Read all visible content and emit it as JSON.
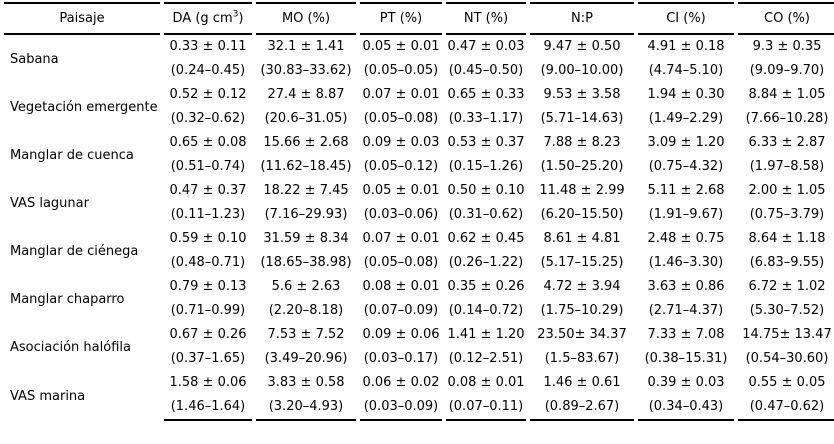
{
  "colors": {
    "text": "#000000",
    "background": "#ffffff",
    "rule": "#000000"
  },
  "table": {
    "columns": [
      {
        "id": "paisaje",
        "label": "Paisaje"
      },
      {
        "id": "da",
        "label_pre": "DA (g cm",
        "label_sup": "3",
        "label_post": ")"
      },
      {
        "id": "mo",
        "label": "MO (%)"
      },
      {
        "id": "pt",
        "label": "PT (%)"
      },
      {
        "id": "nt",
        "label": "NT (%)"
      },
      {
        "id": "np",
        "label": "N:P"
      },
      {
        "id": "ci",
        "label": "CI (%)"
      },
      {
        "id": "co",
        "label": "CO (%)"
      }
    ],
    "rows": [
      {
        "paisaje": "Sabana",
        "mean": [
          "0.33 ± 0.11",
          "32.1 ± 1.41",
          "0.05 ± 0.01",
          "0.47 ± 0.03",
          "9.47 ± 0.50",
          "4.91 ± 0.18",
          "9.3 ± 0.35"
        ],
        "range": [
          "(0.24–0.45)",
          "(30.83–33.62)",
          "(0.05–0.05)",
          "(0.45–0.50)",
          "(9.00–10.00)",
          "(4.74–5.10)",
          "(9.09–9.70)"
        ]
      },
      {
        "paisaje": "Vegetación emergente",
        "mean": [
          "0.52 ± 0.12",
          "27.4 ± 8.87",
          "0.07 ± 0.01",
          "0.65 ± 0.33",
          "9.53 ± 3.58",
          "1.94 ± 0.30",
          "8.84 ± 1.05"
        ],
        "range": [
          "(0.32–0.62)",
          "(20.6–31.05)",
          "(0.05–0.08)",
          "(0.33–1.17)",
          "(5.71–14.63)",
          "(1.49–2.29)",
          "(7.66–10.28)"
        ]
      },
      {
        "paisaje": "Manglar de cuenca",
        "mean": [
          "0.65 ± 0.08",
          "15.66 ± 2.68",
          "0.09 ± 0.03",
          "0.53 ± 0.37",
          "7.88 ± 8.23",
          "3.09 ± 1.20",
          "6.33 ± 2.87"
        ],
        "range": [
          "(0.51–0.74)",
          "(11.62–18.45)",
          "(0.05–0.12)",
          "(0.15–1.26)",
          "(1.50–25.20)",
          "(0.75–4.32)",
          "(1.97–8.58)"
        ]
      },
      {
        "paisaje": "VAS lagunar",
        "mean": [
          "0.47 ± 0.37",
          "18.22 ± 7.45",
          "0.05 ± 0.01",
          "0.50 ± 0.10",
          "11.48 ± 2.99",
          "5.11 ± 2.68",
          "2.00 ± 1.05"
        ],
        "range": [
          "(0.11–1.23)",
          "(7.16–29.93)",
          "(0.03–0.06)",
          "(0.31–0.62)",
          "(6.20–15.50)",
          "(1.91–9.67)",
          "(0.75–3.79)"
        ]
      },
      {
        "paisaje": "Manglar de ciénega",
        "mean": [
          "0.59 ± 0.10",
          "31.59 ± 8.34",
          "0.07 ± 0.01",
          "0.62 ± 0.45",
          "8.61 ± 4.81",
          "2.48 ± 0.75",
          "8.64 ± 1.18"
        ],
        "range": [
          "(0.48–0.71)",
          "(18.65–38.98)",
          "(0.05–0.08)",
          "(0.26–1.22)",
          "(5.17–15.25)",
          "(1.46–3.30)",
          "(6.83–9.55)"
        ]
      },
      {
        "paisaje": "Manglar chaparro",
        "mean": [
          "0.79 ± 0.13",
          "5.6 ± 2.63",
          "0.08 ± 0.01",
          "0.35 ± 0.26",
          "4.72 ± 3.94",
          "3.63 ± 0.86",
          "6.72 ± 1.02"
        ],
        "range": [
          "(0.71–0.99)",
          "(2.20–8.18)",
          "(0.07–0.09)",
          "(0.14–0.72)",
          "(1.75–10.29)",
          "(2.71–4.37)",
          "(5.30–7.52)"
        ]
      },
      {
        "paisaje": "Asociación halófila",
        "mean": [
          "0.67 ± 0.26",
          "7.53 ± 7.52",
          "0.09 ± 0.06",
          "1.41 ± 1.20",
          "23.50± 34.37",
          "7.33 ± 7.08",
          "14.75± 13.47"
        ],
        "range": [
          "(0.37–1.65)",
          "(3.49–20.96)",
          "(0.03–0.17)",
          "(0.12–2.51)",
          "(1.5–83.67)",
          "(0.38–15.31)",
          "(0.54–30.60)"
        ]
      },
      {
        "paisaje": "VAS marina",
        "mean": [
          "1.58 ± 0.06",
          "3.83 ± 0.58",
          "0.06 ± 0.02",
          "0.08 ± 0.01",
          "1.46 ± 0.61",
          "0.39 ± 0.03",
          "0.55 ± 0.05"
        ],
        "range": [
          "(1.46–1.64)",
          "(3.20–4.93)",
          "(0.03–0.09)",
          "(0.07–0.11)",
          "(0.89–2.67)",
          "(0.34–0.43)",
          "(0.47–0.62)"
        ]
      }
    ]
  }
}
